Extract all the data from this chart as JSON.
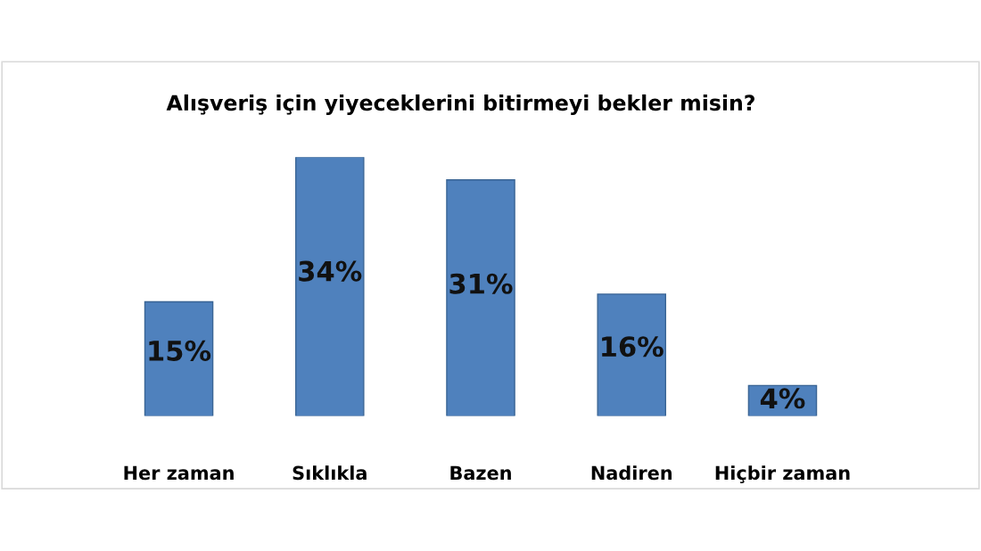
{
  "chart_data": {
    "type": "bar",
    "title": "Alışveriş için yiyeceklerini bitirmeyi bekler misin?",
    "categories": [
      "Her zaman",
      "Sıklıkla",
      "Bazen",
      "Nadiren",
      "Hiçbir zaman"
    ],
    "values": [
      15,
      34,
      31,
      16,
      4
    ],
    "color": "#4f81bd",
    "value_labels": [
      "15%",
      "34%",
      "31%",
      "16%",
      "4%"
    ],
    "grid": false,
    "legend": false
  }
}
